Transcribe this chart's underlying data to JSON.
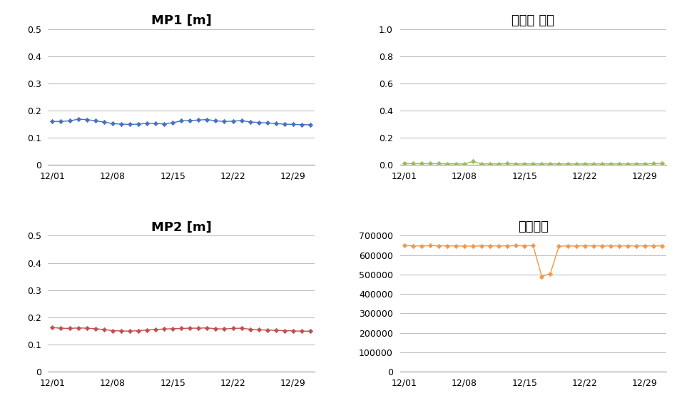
{
  "title_mp1": "MP1 [m]",
  "title_mp2": "MP2 [m]",
  "title_cycle": "사이클 슬립",
  "title_obs": "관측개수",
  "bg_color": "#ffffff",
  "grid_color": "#c0c0c0",
  "line_color_mp1": "#4472C4",
  "line_color_mp2": "#C0504D",
  "line_color_cycle": "#9BBB59",
  "line_color_obs": "#F79646",
  "mp1_ylim": [
    0,
    0.5
  ],
  "mp1_yticks": [
    0,
    0.1,
    0.2,
    0.3,
    0.4,
    0.5
  ],
  "mp2_ylim": [
    0,
    0.5
  ],
  "mp2_yticks": [
    0,
    0.1,
    0.2,
    0.3,
    0.4,
    0.5
  ],
  "cycle_ylim": [
    0,
    1.0
  ],
  "cycle_yticks": [
    0.0,
    0.2,
    0.4,
    0.6,
    0.8,
    1.0
  ],
  "obs_ylim": [
    0,
    700000
  ],
  "obs_yticks": [
    0,
    100000,
    200000,
    300000,
    400000,
    500000,
    600000,
    700000
  ],
  "x_tick_labels": [
    "12/01",
    "12/08",
    "12/15",
    "12/22",
    "12/29"
  ],
  "x_tick_positions": [
    0,
    7,
    14,
    21,
    28
  ],
  "n_days": 31,
  "mp1_values": [
    0.16,
    0.16,
    0.162,
    0.168,
    0.167,
    0.162,
    0.158,
    0.152,
    0.15,
    0.149,
    0.15,
    0.153,
    0.152,
    0.151,
    0.155,
    0.162,
    0.163,
    0.165,
    0.167,
    0.162,
    0.16,
    0.161,
    0.163,
    0.158,
    0.156,
    0.154,
    0.152,
    0.15,
    0.149,
    0.148,
    0.148
  ],
  "mp2_values": [
    0.162,
    0.16,
    0.159,
    0.161,
    0.16,
    0.158,
    0.155,
    0.151,
    0.15,
    0.149,
    0.151,
    0.153,
    0.155,
    0.157,
    0.158,
    0.159,
    0.16,
    0.16,
    0.161,
    0.158,
    0.157,
    0.159,
    0.16,
    0.156,
    0.154,
    0.153,
    0.152,
    0.151,
    0.15,
    0.149,
    0.149
  ],
  "cycle_values": [
    0.012,
    0.01,
    0.01,
    0.01,
    0.01,
    0.008,
    0.008,
    0.008,
    0.025,
    0.008,
    0.008,
    0.008,
    0.01,
    0.008,
    0.008,
    0.008,
    0.008,
    0.008,
    0.008,
    0.008,
    0.008,
    0.008,
    0.008,
    0.008,
    0.008,
    0.008,
    0.008,
    0.008,
    0.008,
    0.01,
    0.012
  ],
  "obs_values": [
    650000,
    648000,
    647000,
    649000,
    648000,
    648000,
    647000,
    647000,
    646000,
    648000,
    648000,
    647000,
    648000,
    649000,
    648000,
    649000,
    490000,
    505000,
    645000,
    648000,
    647000,
    648000,
    648000,
    647000,
    648000,
    647000,
    648000,
    647000,
    648000,
    647000,
    648000
  ]
}
